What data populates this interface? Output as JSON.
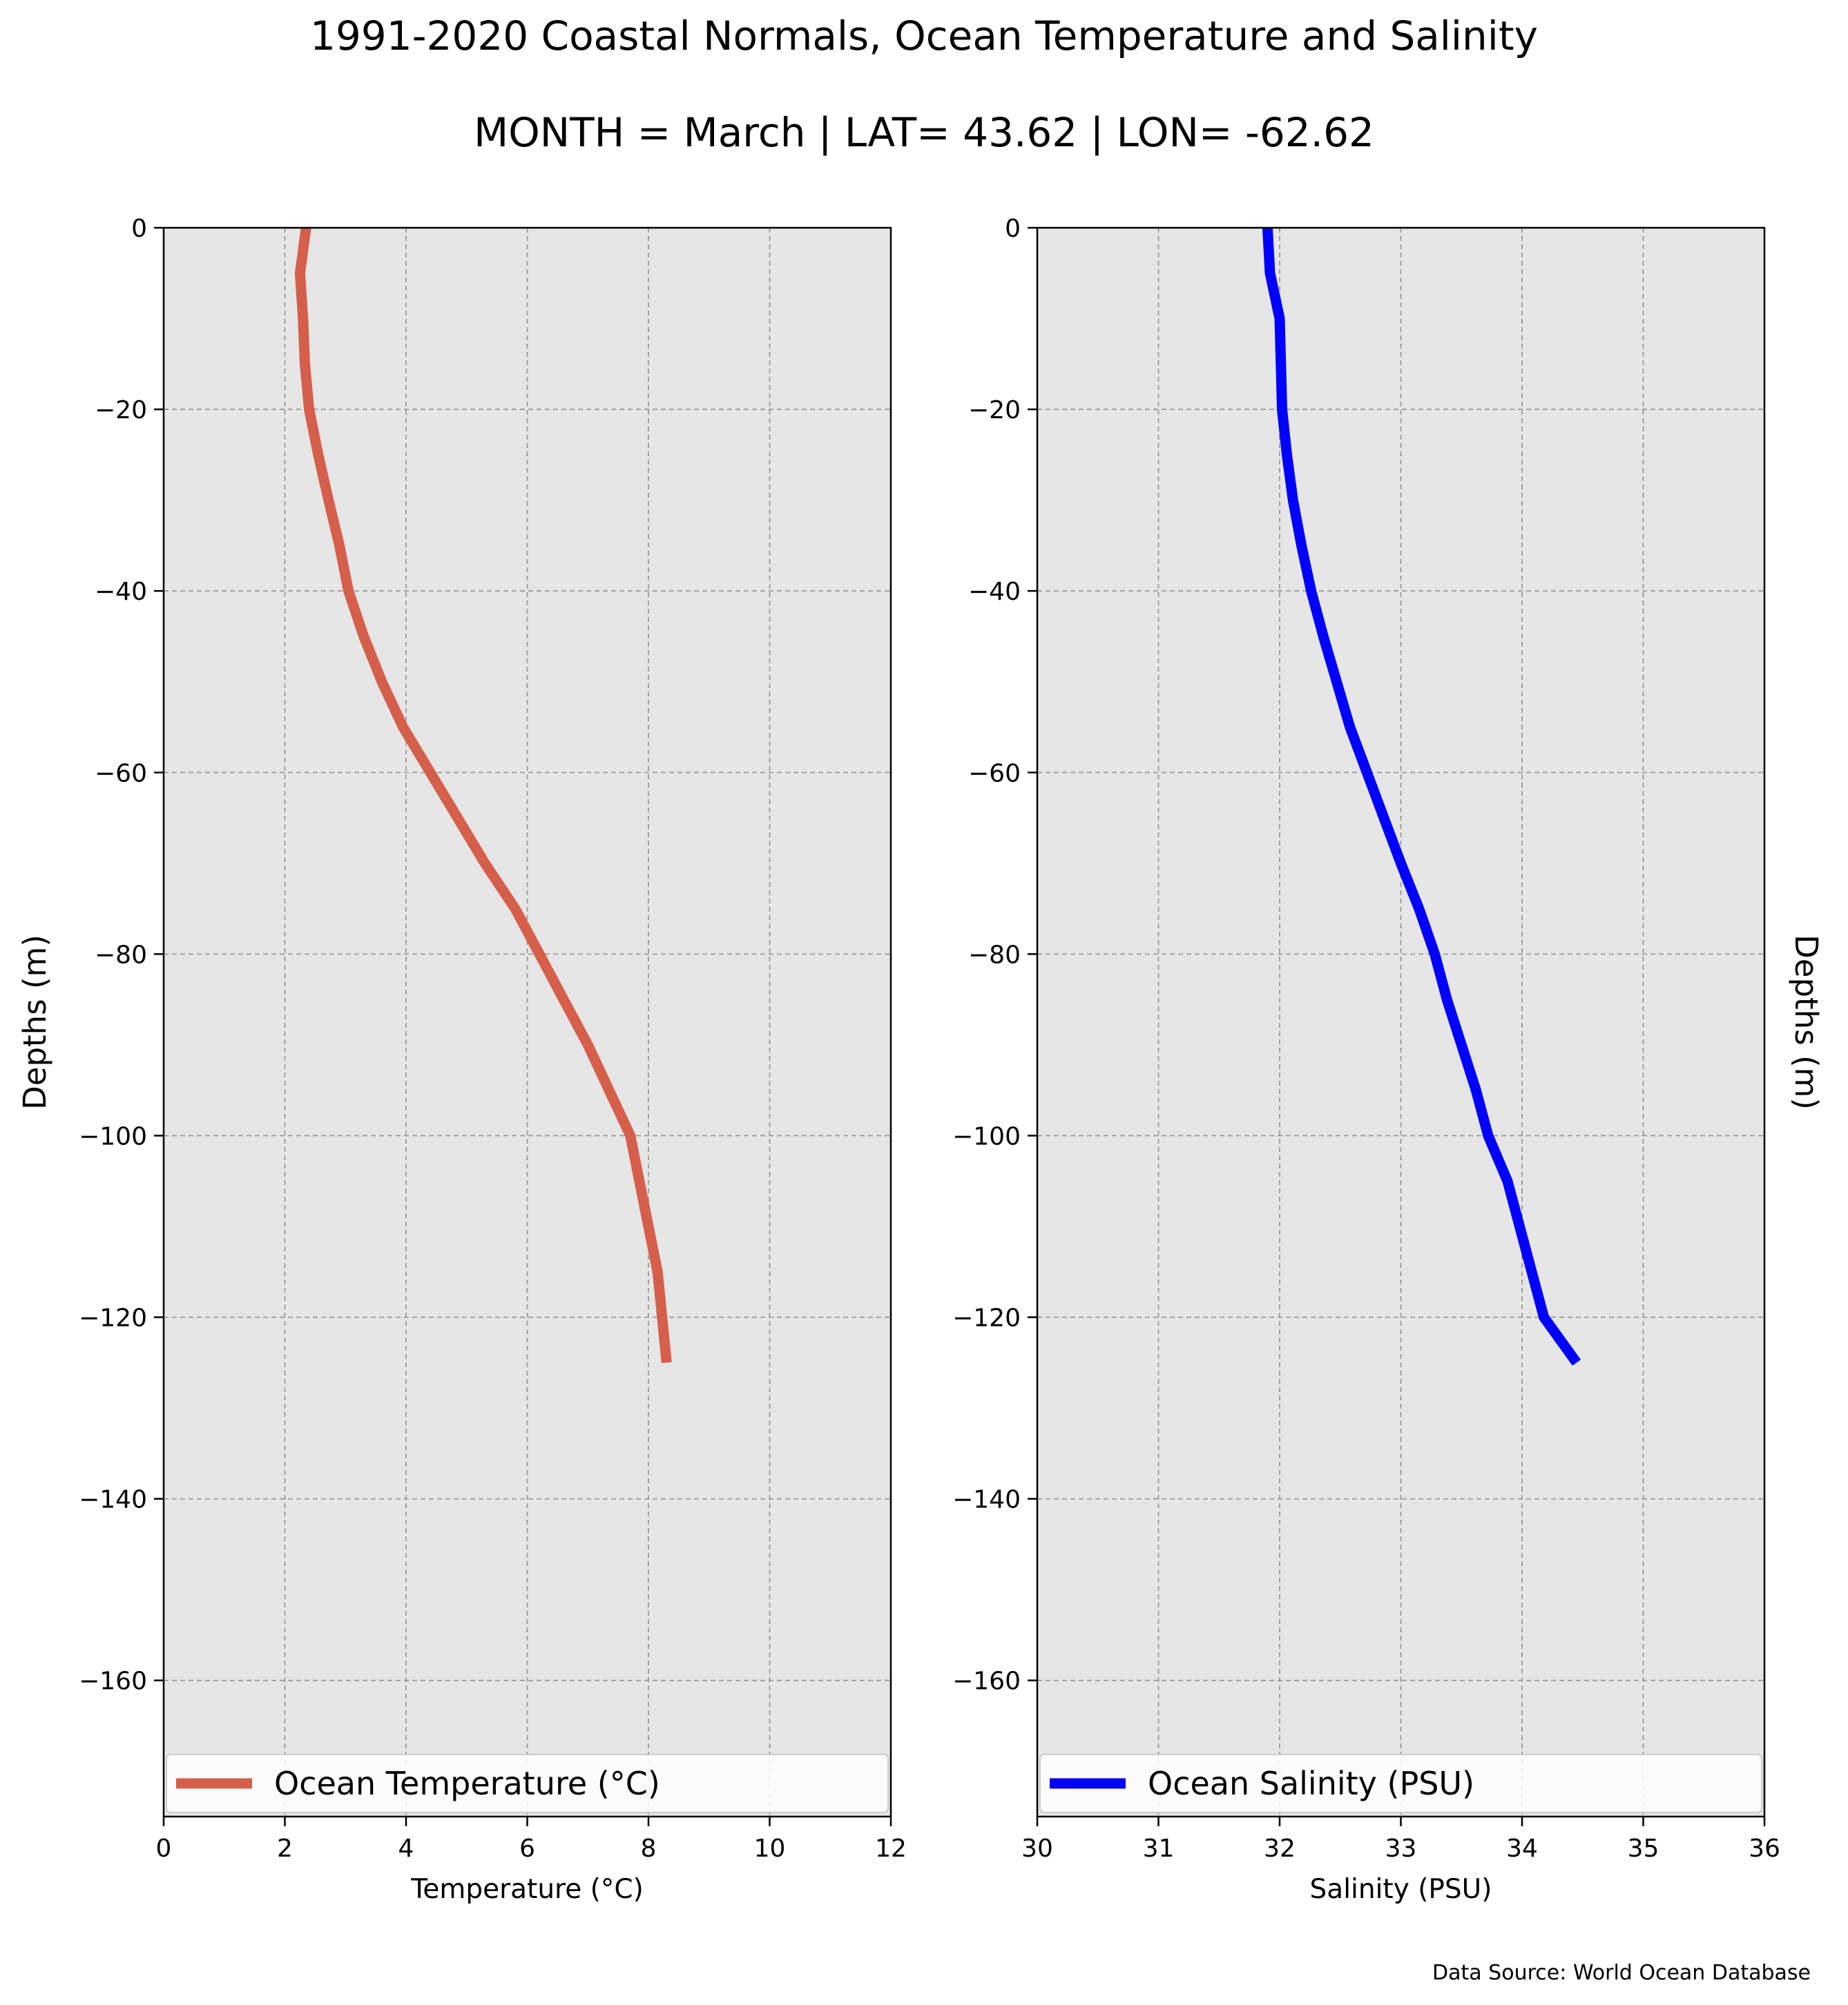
{
  "figure": {
    "title": "1991-2020 Coastal Normals, Ocean Temperature and Salinity",
    "subtitle": "MONTH = March | LAT= 43.62 | LON= -62.62",
    "source_note": "Data Source: World Ocean Database"
  },
  "chart_data": [
    {
      "type": "line",
      "xlabel": "Temperature (°C)",
      "ylabel": "Depths (m)",
      "xlim": [
        0,
        12
      ],
      "ylim": [
        -175,
        0
      ],
      "xticks": [
        0,
        2,
        4,
        6,
        8,
        10,
        12
      ],
      "yticks": [
        0,
        -20,
        -40,
        -60,
        -80,
        -100,
        -120,
        -140,
        -160
      ],
      "xtick_labels": [
        "0",
        "2",
        "4",
        "6",
        "8",
        "10",
        "12"
      ],
      "ytick_labels": [
        "0",
        "−20",
        "−40",
        "−60",
        "−80",
        "−100",
        "−120",
        "−140",
        "−160"
      ],
      "grid": true,
      "legend_position": "bottom",
      "series": [
        {
          "name": "Ocean Temperature (°C)",
          "color": "#d65f4b",
          "x": [
            2.35,
            2.25,
            2.3,
            2.33,
            2.4,
            2.55,
            2.72,
            2.9,
            3.05,
            3.3,
            3.6,
            3.95,
            4.4,
            4.85,
            5.3,
            5.8,
            6.2,
            6.6,
            7.0,
            7.35,
            7.7,
            7.85,
            8.0,
            8.15,
            8.3
          ],
          "y": [
            0,
            -5,
            -10,
            -15,
            -20,
            -25,
            -30,
            -35,
            -40,
            -45,
            -50,
            -55,
            -60,
            -65,
            -70,
            -75,
            -80,
            -85,
            -90,
            -95,
            -100,
            -105,
            -110,
            -115,
            -125
          ]
        }
      ]
    },
    {
      "type": "line",
      "xlabel": "Salinity (PSU)",
      "ylabel": "Depths (m)",
      "xlim": [
        30,
        36
      ],
      "ylim": [
        -175,
        0
      ],
      "xticks": [
        30,
        31,
        32,
        33,
        34,
        35,
        36
      ],
      "yticks": [
        0,
        -20,
        -40,
        -60,
        -80,
        -100,
        -120,
        -140,
        -160
      ],
      "xtick_labels": [
        "30",
        "31",
        "32",
        "33",
        "34",
        "35",
        "36"
      ],
      "ytick_labels": [
        "0",
        "−20",
        "−40",
        "−60",
        "−80",
        "−100",
        "−120",
        "−140",
        "−160"
      ],
      "grid": true,
      "legend_position": "bottom",
      "series": [
        {
          "name": "Ocean Salinity (PSU)",
          "color": "#0000ff",
          "x": [
            31.9,
            31.92,
            32.0,
            32.01,
            32.02,
            32.06,
            32.11,
            32.18,
            32.26,
            32.36,
            32.47,
            32.58,
            32.72,
            32.86,
            33.0,
            33.15,
            33.28,
            33.38,
            33.5,
            33.62,
            33.72,
            33.88,
            33.98,
            34.08,
            34.18,
            34.45
          ],
          "y": [
            0,
            -5,
            -10,
            -15,
            -20,
            -25,
            -30,
            -35,
            -40,
            -45,
            -50,
            -55,
            -60,
            -65,
            -70,
            -75,
            -80,
            -85,
            -90,
            -95,
            -100,
            -105,
            -110,
            -115,
            -120,
            -125
          ]
        }
      ]
    }
  ]
}
